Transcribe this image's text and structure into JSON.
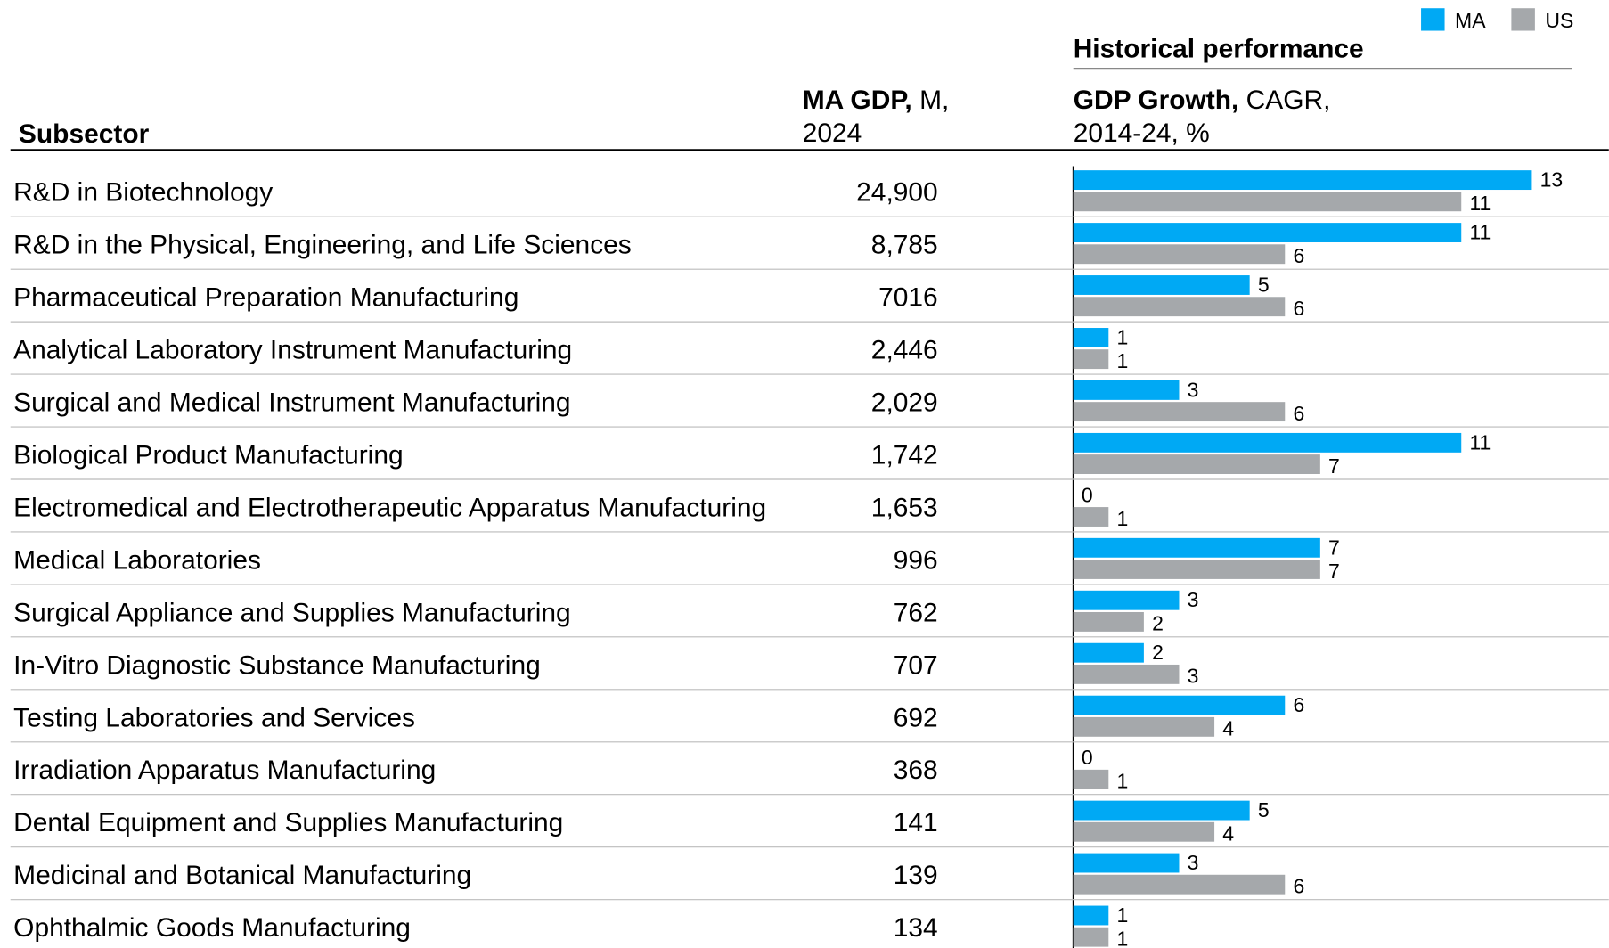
{
  "chart_data": {
    "type": "bar",
    "title": "Historical performance",
    "col_subsector": "Subsector",
    "col_gdp": {
      "bold": "MA GDP,",
      "rest": "M,",
      "line2": "2024"
    },
    "col_growth": {
      "bold": "GDP Growth,",
      "rest": "CAGR,",
      "line2": "2014-24, %"
    },
    "categories": [
      "R&D in Biotechnology",
      "R&D in the Physical, Engineering, and Life Sciences",
      "Pharmaceutical Preparation Manufacturing",
      "Analytical Laboratory Instrument Manufacturing",
      "Surgical and Medical Instrument Manufacturing",
      "Biological Product Manufacturing",
      "Electromedical and Electrotherapeutic Apparatus Manufacturing",
      "Medical Laboratories",
      "Surgical Appliance and Supplies Manufacturing",
      "In-Vitro Diagnostic Substance Manufacturing",
      "Testing Laboratories and Services",
      "Irradiation Apparatus Manufacturing",
      "Dental Equipment and Supplies Manufacturing",
      "Medicinal and Botanical Manufacturing",
      "Ophthalmic Goods Manufacturing"
    ],
    "gdp": [
      "24,900",
      "8,785",
      "7016",
      "2,446",
      "2,029",
      "1,742",
      "1,653",
      "996",
      "762",
      "707",
      "692",
      "368",
      "141",
      "139",
      "134"
    ],
    "series": [
      {
        "name": "MA",
        "color": "#00a9f4",
        "values": [
          13,
          11,
          5,
          1,
          3,
          11,
          0,
          7,
          3,
          2,
          6,
          0,
          5,
          3,
          1
        ]
      },
      {
        "name": "US",
        "color": "#a5a8ab",
        "values": [
          11,
          6,
          6,
          1,
          6,
          7,
          1,
          7,
          2,
          3,
          4,
          1,
          4,
          6,
          1
        ]
      }
    ]
  }
}
